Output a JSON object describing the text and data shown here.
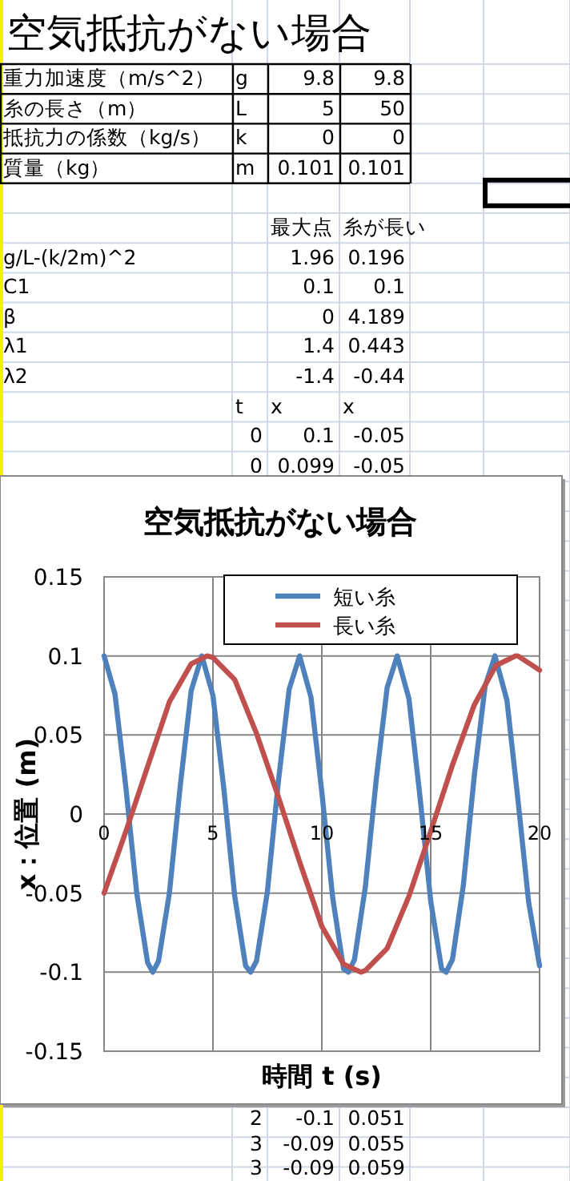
{
  "chart_data": {
    "type": "line",
    "title": "空気抵抗がない場合",
    "xlabel": "時間 t (s)",
    "ylabel": "x：位置 (m)",
    "xlim": [
      0,
      20
    ],
    "xticks": [
      0,
      5,
      10,
      15,
      20
    ],
    "ylim": [
      -0.15,
      0.15
    ],
    "yticks": [
      -0.15,
      -0.1,
      -0.05,
      0,
      0.05,
      0.1,
      0.15
    ],
    "grid": true,
    "legend": "top",
    "line_style": "solid",
    "marker": "none",
    "series": [
      {
        "name": "短い糸",
        "color": "#4f81bd",
        "x": [
          0,
          0.5,
          1,
          1.5,
          2,
          2.24,
          2.5,
          3,
          3.5,
          4,
          4.49,
          5,
          5.5,
          6,
          6.5,
          6.73,
          7,
          7.5,
          8,
          8.5,
          8.98,
          9.5,
          10,
          10.5,
          11,
          11.22,
          11.5,
          12,
          12.5,
          13,
          13.46,
          14,
          14.5,
          15,
          15.5,
          15.71,
          16,
          16.5,
          17,
          17.5,
          17.95,
          18.5,
          19,
          19.5,
          20
        ],
        "values": [
          0.1,
          0.076,
          0.017,
          -0.05,
          -0.094,
          -0.1,
          -0.093,
          -0.05,
          0.018,
          0.078,
          0.1,
          0.075,
          0.016,
          -0.052,
          -0.096,
          -0.1,
          -0.093,
          -0.049,
          0.02,
          0.079,
          0.1,
          0.074,
          0.014,
          -0.053,
          -0.098,
          -0.1,
          -0.092,
          -0.046,
          0.022,
          0.08,
          0.1,
          0.073,
          0.012,
          -0.055,
          -0.098,
          -0.1,
          -0.092,
          -0.045,
          0.024,
          0.081,
          0.1,
          0.072,
          0.01,
          -0.056,
          -0.096
        ]
      },
      {
        "name": "長い糸",
        "color": "#c0504d",
        "x": [
          0,
          1,
          2,
          3,
          4,
          4.73,
          5,
          6,
          7,
          8,
          9,
          10,
          11,
          11.8,
          12,
          13,
          14,
          15,
          16,
          17,
          18,
          18.9,
          19,
          20
        ],
        "values": [
          -0.05,
          -0.011,
          0.03,
          0.071,
          0.095,
          0.1,
          0.099,
          0.085,
          0.051,
          0.011,
          -0.031,
          -0.071,
          -0.095,
          -0.1,
          -0.099,
          -0.085,
          -0.052,
          -0.011,
          0.031,
          0.069,
          0.094,
          0.1,
          0.1,
          0.091
        ]
      }
    ],
    "annotations": [
      "空気抵抗がない場合",
      "重力加速度（m/s^2）\tg\t9.8\t9.8",
      "糸の長さ（m）\tL\t5\t50",
      "抵抗力の係数（kg/s）\tk\t0\t0",
      "質量（kg）\tm\t0.101\t0.101",
      "\t\t最大点\t糸が長い",
      "g/L-(k/2m)^2\t\t1.96\t0.196",
      "C1\t\t0.1\t0.1",
      "β\t\t0\t4.189",
      "λ1\t\t1.4\t0.443",
      "λ2\t\t-1.4\t-0.44",
      "\tt\tx\tx",
      "\t0\t0.1\t-0.05",
      "\t0\t0.099\t-0.05",
      "\t2\t-0.1\t0.051",
      "\t3\t-0.09\t0.055",
      "\t3\t-0.09\t0.059"
    ]
  }
}
